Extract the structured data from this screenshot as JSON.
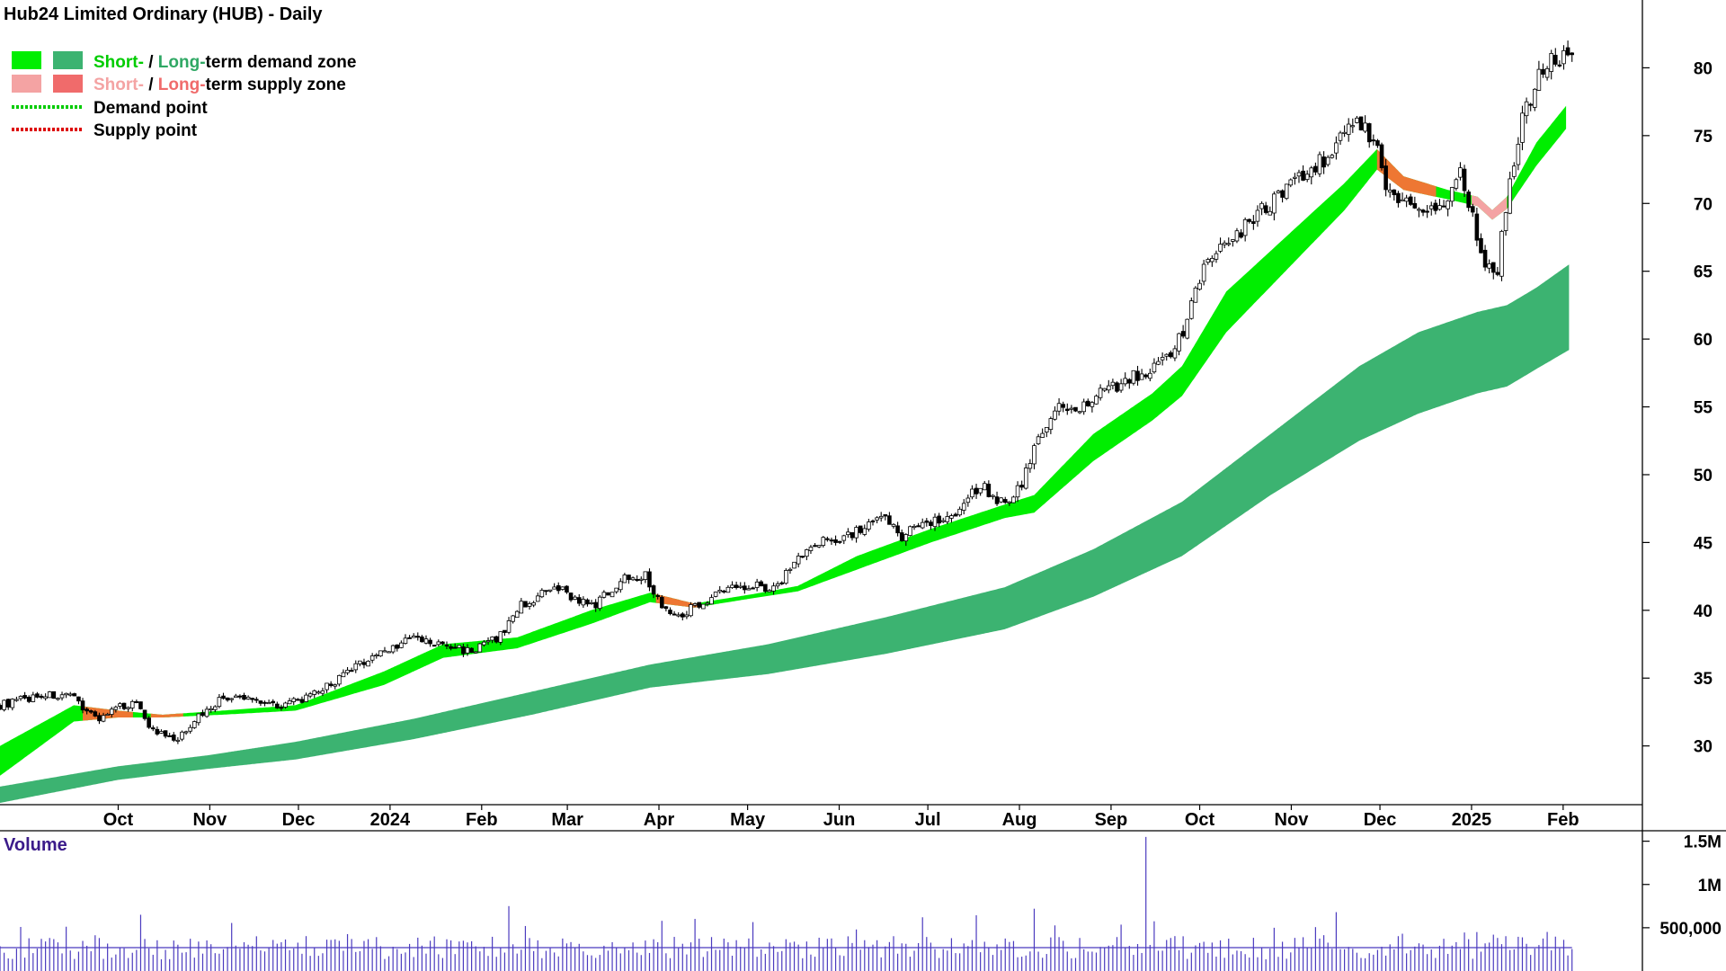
{
  "chart_data": {
    "type": "candlestick",
    "title": "Hub24 Limited Ordinary (HUB) - Daily",
    "legend": {
      "placement": "top-left",
      "demand_zone": {
        "short_label": "Short-",
        "sep": " / ",
        "long_label": "Long-",
        "rest": "term demand zone"
      },
      "supply_zone": {
        "short_label": "Short-",
        "sep": " / ",
        "long_label": "Long-",
        "rest": "term supply zone"
      },
      "demand_point": "Demand point",
      "supply_point": "Supply point"
    },
    "colors": {
      "short_demand": "#00ee00",
      "long_demand": "#3cb371",
      "short_supply": "#f4a3a3",
      "long_supply": "#f06b6b",
      "short_transition": "#ee7733",
      "demand_point": "#00cc00",
      "supply_point": "#dd0000",
      "volume": "#4b3bbf",
      "volume_text": "#3b1b8a",
      "label_green": "#00cc00",
      "label_darkgreen": "#2fa864",
      "label_pink": "#f4a3a3",
      "label_red": "#f06b6b"
    },
    "x_axis": {
      "months": [
        {
          "label": "Oct",
          "day": 40
        },
        {
          "label": "Nov",
          "day": 71
        },
        {
          "label": "Dec",
          "day": 101
        },
        {
          "label": "2024",
          "day": 132
        },
        {
          "label": "Feb",
          "day": 163
        },
        {
          "label": "Mar",
          "day": 192
        },
        {
          "label": "Apr",
          "day": 223
        },
        {
          "label": "May",
          "day": 253
        },
        {
          "label": "Jun",
          "day": 284
        },
        {
          "label": "Jul",
          "day": 314
        },
        {
          "label": "Aug",
          "day": 345
        },
        {
          "label": "Sep",
          "day": 376
        },
        {
          "label": "Oct",
          "day": 406
        },
        {
          "label": "Nov",
          "day": 437
        },
        {
          "label": "Dec",
          "day": 467
        },
        {
          "label": "2025",
          "day": 498
        },
        {
          "label": "Feb",
          "day": 529
        }
      ],
      "day_range": [
        0,
        540
      ]
    },
    "y_axis": {
      "ylim": [
        26,
        85
      ],
      "ticks": [
        30,
        35,
        40,
        45,
        50,
        55,
        60,
        65,
        70,
        75,
        80
      ],
      "position": "right",
      "grid": false
    },
    "price_anchors": [
      {
        "day": 0,
        "price": 33.0
      },
      {
        "day": 15,
        "price": 33.8
      },
      {
        "day": 25,
        "price": 33.5
      },
      {
        "day": 33,
        "price": 32.0
      },
      {
        "day": 42,
        "price": 33.0
      },
      {
        "day": 47,
        "price": 33.2
      },
      {
        "day": 51,
        "price": 31.2
      },
      {
        "day": 60,
        "price": 30.3
      },
      {
        "day": 65,
        "price": 31.8
      },
      {
        "day": 75,
        "price": 33.5
      },
      {
        "day": 85,
        "price": 33.5
      },
      {
        "day": 95,
        "price": 33.0
      },
      {
        "day": 105,
        "price": 33.6
      },
      {
        "day": 115,
        "price": 35.0
      },
      {
        "day": 125,
        "price": 36.5
      },
      {
        "day": 140,
        "price": 38.0
      },
      {
        "day": 145,
        "price": 37.6
      },
      {
        "day": 160,
        "price": 37.0
      },
      {
        "day": 170,
        "price": 38.2
      },
      {
        "day": 175,
        "price": 40.2
      },
      {
        "day": 185,
        "price": 41.3
      },
      {
        "day": 190,
        "price": 41.5
      },
      {
        "day": 200,
        "price": 40.2
      },
      {
        "day": 212,
        "price": 42.5
      },
      {
        "day": 218,
        "price": 42.7
      },
      {
        "day": 222,
        "price": 41.0
      },
      {
        "day": 228,
        "price": 39.5
      },
      {
        "day": 235,
        "price": 40.3
      },
      {
        "day": 245,
        "price": 41.5
      },
      {
        "day": 255,
        "price": 42.0
      },
      {
        "day": 262,
        "price": 41.5
      },
      {
        "day": 270,
        "price": 44.0
      },
      {
        "day": 280,
        "price": 45.2
      },
      {
        "day": 290,
        "price": 45.8
      },
      {
        "day": 300,
        "price": 46.8
      },
      {
        "day": 305,
        "price": 45.5
      },
      {
        "day": 312,
        "price": 46.5
      },
      {
        "day": 322,
        "price": 47.0
      },
      {
        "day": 332,
        "price": 49.3
      },
      {
        "day": 340,
        "price": 47.8
      },
      {
        "day": 345,
        "price": 49.0
      },
      {
        "day": 352,
        "price": 53.0
      },
      {
        "day": 358,
        "price": 55.0
      },
      {
        "day": 365,
        "price": 54.5
      },
      {
        "day": 372,
        "price": 56.0
      },
      {
        "day": 382,
        "price": 57.0
      },
      {
        "day": 392,
        "price": 58.0
      },
      {
        "day": 397,
        "price": 59.0
      },
      {
        "day": 400,
        "price": 60.5
      },
      {
        "day": 404,
        "price": 63.0
      },
      {
        "day": 410,
        "price": 66.5
      },
      {
        "day": 420,
        "price": 68.0
      },
      {
        "day": 430,
        "price": 70.0
      },
      {
        "day": 440,
        "price": 72.0
      },
      {
        "day": 450,
        "price": 73.5
      },
      {
        "day": 456,
        "price": 76.0
      },
      {
        "day": 462,
        "price": 75.5
      },
      {
        "day": 466,
        "price": 74.5
      },
      {
        "day": 470,
        "price": 70.5
      },
      {
        "day": 480,
        "price": 70.0
      },
      {
        "day": 488,
        "price": 69.5
      },
      {
        "day": 494,
        "price": 72.5
      },
      {
        "day": 499,
        "price": 68.5
      },
      {
        "day": 502,
        "price": 65.0
      },
      {
        "day": 507,
        "price": 65.3
      },
      {
        "day": 510,
        "price": 70.5
      },
      {
        "day": 515,
        "price": 76.0
      },
      {
        "day": 520,
        "price": 79.0
      },
      {
        "day": 525,
        "price": 80.5
      },
      {
        "day": 532,
        "price": 81.0
      }
    ],
    "short_band_top": [
      {
        "day": 0,
        "v": 30.0
      },
      {
        "day": 25,
        "v": 33.0
      },
      {
        "day": 40,
        "v": 32.6
      },
      {
        "day": 55,
        "v": 32.3
      },
      {
        "day": 75,
        "v": 32.6
      },
      {
        "day": 100,
        "v": 33.0
      },
      {
        "day": 130,
        "v": 35.5
      },
      {
        "day": 150,
        "v": 37.5
      },
      {
        "day": 175,
        "v": 38.0
      },
      {
        "day": 200,
        "v": 40.0
      },
      {
        "day": 220,
        "v": 41.3
      },
      {
        "day": 235,
        "v": 40.5
      },
      {
        "day": 255,
        "v": 41.2
      },
      {
        "day": 270,
        "v": 41.8
      },
      {
        "day": 290,
        "v": 44.0
      },
      {
        "day": 315,
        "v": 46.0
      },
      {
        "day": 340,
        "v": 47.8
      },
      {
        "day": 350,
        "v": 48.5
      },
      {
        "day": 370,
        "v": 53.0
      },
      {
        "day": 390,
        "v": 56.0
      },
      {
        "day": 400,
        "v": 58.0
      },
      {
        "day": 415,
        "v": 63.5
      },
      {
        "day": 435,
        "v": 67.5
      },
      {
        "day": 455,
        "v": 71.5
      },
      {
        "day": 466,
        "v": 74.0
      },
      {
        "day": 475,
        "v": 72.0
      },
      {
        "day": 490,
        "v": 71.0
      },
      {
        "day": 500,
        "v": 70.5
      },
      {
        "day": 505,
        "v": 69.5
      },
      {
        "day": 510,
        "v": 70.5
      },
      {
        "day": 520,
        "v": 74.5
      },
      {
        "day": 530,
        "v": 77.2
      }
    ],
    "short_band_bottom": [
      {
        "day": 0,
        "v": 27.8
      },
      {
        "day": 25,
        "v": 31.8
      },
      {
        "day": 40,
        "v": 32.1
      },
      {
        "day": 55,
        "v": 32.1
      },
      {
        "day": 75,
        "v": 32.3
      },
      {
        "day": 100,
        "v": 32.6
      },
      {
        "day": 130,
        "v": 34.5
      },
      {
        "day": 150,
        "v": 36.5
      },
      {
        "day": 175,
        "v": 37.2
      },
      {
        "day": 200,
        "v": 39.0
      },
      {
        "day": 220,
        "v": 40.6
      },
      {
        "day": 235,
        "v": 40.2
      },
      {
        "day": 255,
        "v": 40.9
      },
      {
        "day": 270,
        "v": 41.4
      },
      {
        "day": 290,
        "v": 43.0
      },
      {
        "day": 315,
        "v": 45.0
      },
      {
        "day": 340,
        "v": 46.8
      },
      {
        "day": 350,
        "v": 47.2
      },
      {
        "day": 370,
        "v": 51.0
      },
      {
        "day": 390,
        "v": 54.0
      },
      {
        "day": 400,
        "v": 55.8
      },
      {
        "day": 415,
        "v": 60.5
      },
      {
        "day": 435,
        "v": 65.0
      },
      {
        "day": 455,
        "v": 69.5
      },
      {
        "day": 466,
        "v": 72.5
      },
      {
        "day": 475,
        "v": 71.0
      },
      {
        "day": 490,
        "v": 70.3
      },
      {
        "day": 500,
        "v": 69.8
      },
      {
        "day": 505,
        "v": 68.8
      },
      {
        "day": 510,
        "v": 69.6
      },
      {
        "day": 520,
        "v": 72.8
      },
      {
        "day": 530,
        "v": 75.5
      }
    ],
    "short_band_orange_spans": [
      [
        28,
        45
      ],
      [
        51,
        62
      ],
      [
        222,
        236
      ],
      [
        466,
        486
      ]
    ],
    "short_band_pink_spans": [
      [
        498,
        510
      ]
    ],
    "long_band_top": [
      {
        "day": 0,
        "v": 27.0
      },
      {
        "day": 40,
        "v": 28.5
      },
      {
        "day": 70,
        "v": 29.3
      },
      {
        "day": 100,
        "v": 30.3
      },
      {
        "day": 140,
        "v": 32.0
      },
      {
        "day": 180,
        "v": 34.0
      },
      {
        "day": 220,
        "v": 36.0
      },
      {
        "day": 260,
        "v": 37.5
      },
      {
        "day": 300,
        "v": 39.5
      },
      {
        "day": 340,
        "v": 41.7
      },
      {
        "day": 370,
        "v": 44.5
      },
      {
        "day": 400,
        "v": 48.0
      },
      {
        "day": 430,
        "v": 53.0
      },
      {
        "day": 460,
        "v": 58.0
      },
      {
        "day": 480,
        "v": 60.5
      },
      {
        "day": 500,
        "v": 62.0
      },
      {
        "day": 510,
        "v": 62.5
      },
      {
        "day": 520,
        "v": 63.8
      },
      {
        "day": 531,
        "v": 65.5
      }
    ],
    "long_band_bottom": [
      {
        "day": 0,
        "v": 25.8
      },
      {
        "day": 40,
        "v": 27.5
      },
      {
        "day": 70,
        "v": 28.3
      },
      {
        "day": 100,
        "v": 29.0
      },
      {
        "day": 140,
        "v": 30.5
      },
      {
        "day": 180,
        "v": 32.3
      },
      {
        "day": 220,
        "v": 34.3
      },
      {
        "day": 260,
        "v": 35.3
      },
      {
        "day": 300,
        "v": 36.8
      },
      {
        "day": 340,
        "v": 38.6
      },
      {
        "day": 370,
        "v": 41.0
      },
      {
        "day": 400,
        "v": 44.0
      },
      {
        "day": 430,
        "v": 48.5
      },
      {
        "day": 460,
        "v": 52.5
      },
      {
        "day": 480,
        "v": 54.5
      },
      {
        "day": 500,
        "v": 56.0
      },
      {
        "day": 510,
        "v": 56.5
      },
      {
        "day": 520,
        "v": 57.8
      },
      {
        "day": 531,
        "v": 59.2
      }
    ],
    "volume": {
      "label": "Volume",
      "ylim": [
        0,
        1600000
      ],
      "ticks": [
        {
          "value": 1500000,
          "label": "1.5M"
        },
        {
          "value": 1000000,
          "label": "1M"
        },
        {
          "value": 500000,
          "label": "500,000"
        }
      ],
      "typical": 300000,
      "average": 270000,
      "spikes": [
        {
          "day": 47,
          "v": 650000
        },
        {
          "day": 172,
          "v": 750000
        },
        {
          "day": 178,
          "v": 520000
        },
        {
          "day": 224,
          "v": 580000
        },
        {
          "day": 290,
          "v": 480000
        },
        {
          "day": 350,
          "v": 720000
        },
        {
          "day": 388,
          "v": 1550000
        },
        {
          "day": 452,
          "v": 680000
        },
        {
          "day": 500,
          "v": 450000
        },
        {
          "day": 505,
          "v": 420000
        }
      ]
    }
  }
}
